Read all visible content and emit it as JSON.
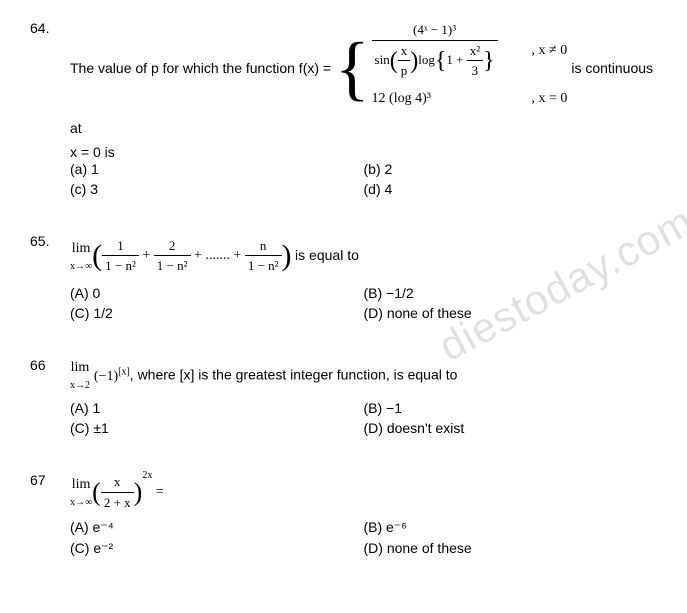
{
  "watermark": "diestoday.com",
  "q64": {
    "num": "64.",
    "text_before": "The value of p for which the function f(x) =",
    "text_after": "is continuous at",
    "piece1_num": "(4ˣ − 1)³",
    "piece1_den_sin": "sin",
    "piece1_den_frac_num": "x",
    "piece1_den_frac_den": "p",
    "piece1_den_log": "log",
    "piece1_den_log_inner": "1 +",
    "piece1_den_log_frac_num": "x²",
    "piece1_den_log_frac_den": "3",
    "cond1": ",  x ≠ 0",
    "piece2": "12 (log 4)³",
    "cond2": ",  x = 0",
    "tail": "x = 0 is",
    "a": "(a) 1",
    "b": "(b) 2",
    "c": "(c) 3",
    "d": "(d) 4"
  },
  "q65": {
    "num": "65.",
    "lim_top": "lim",
    "lim_bot": "x→∞",
    "t1_num": "1",
    "t1_den": "1 − n²",
    "plus1": "+",
    "t2_num": "2",
    "t2_den": "1 − n²",
    "dots": "+ ....... +",
    "tn_num": "n",
    "tn_den": "1 − n²",
    "after": "is equal to",
    "a": "(A) 0",
    "b": "(B) −1/2",
    "c": "(C) 1/2",
    "d": "(D) none of these"
  },
  "q66": {
    "num": "66",
    "lim_top": "lim",
    "lim_bot": "x→2",
    "expr": "(−1)",
    "sup": "[x]",
    "after": ", where [x] is the greatest integer function, is equal to",
    "a": "(A) 1",
    "b": "(B) −1",
    "c": "(C) ±1",
    "d": "(D) doesn't exist"
  },
  "q67": {
    "num": "67",
    "lim_top": "lim",
    "lim_bot": "x→∞",
    "frac_num": "x",
    "frac_den": "2 + x",
    "sup": "2x",
    "eq": "=",
    "a": "(A) e⁻⁴",
    "b": "(B) e⁻⁶",
    "c": "(C) e⁻²",
    "d": "(D) none of these"
  }
}
